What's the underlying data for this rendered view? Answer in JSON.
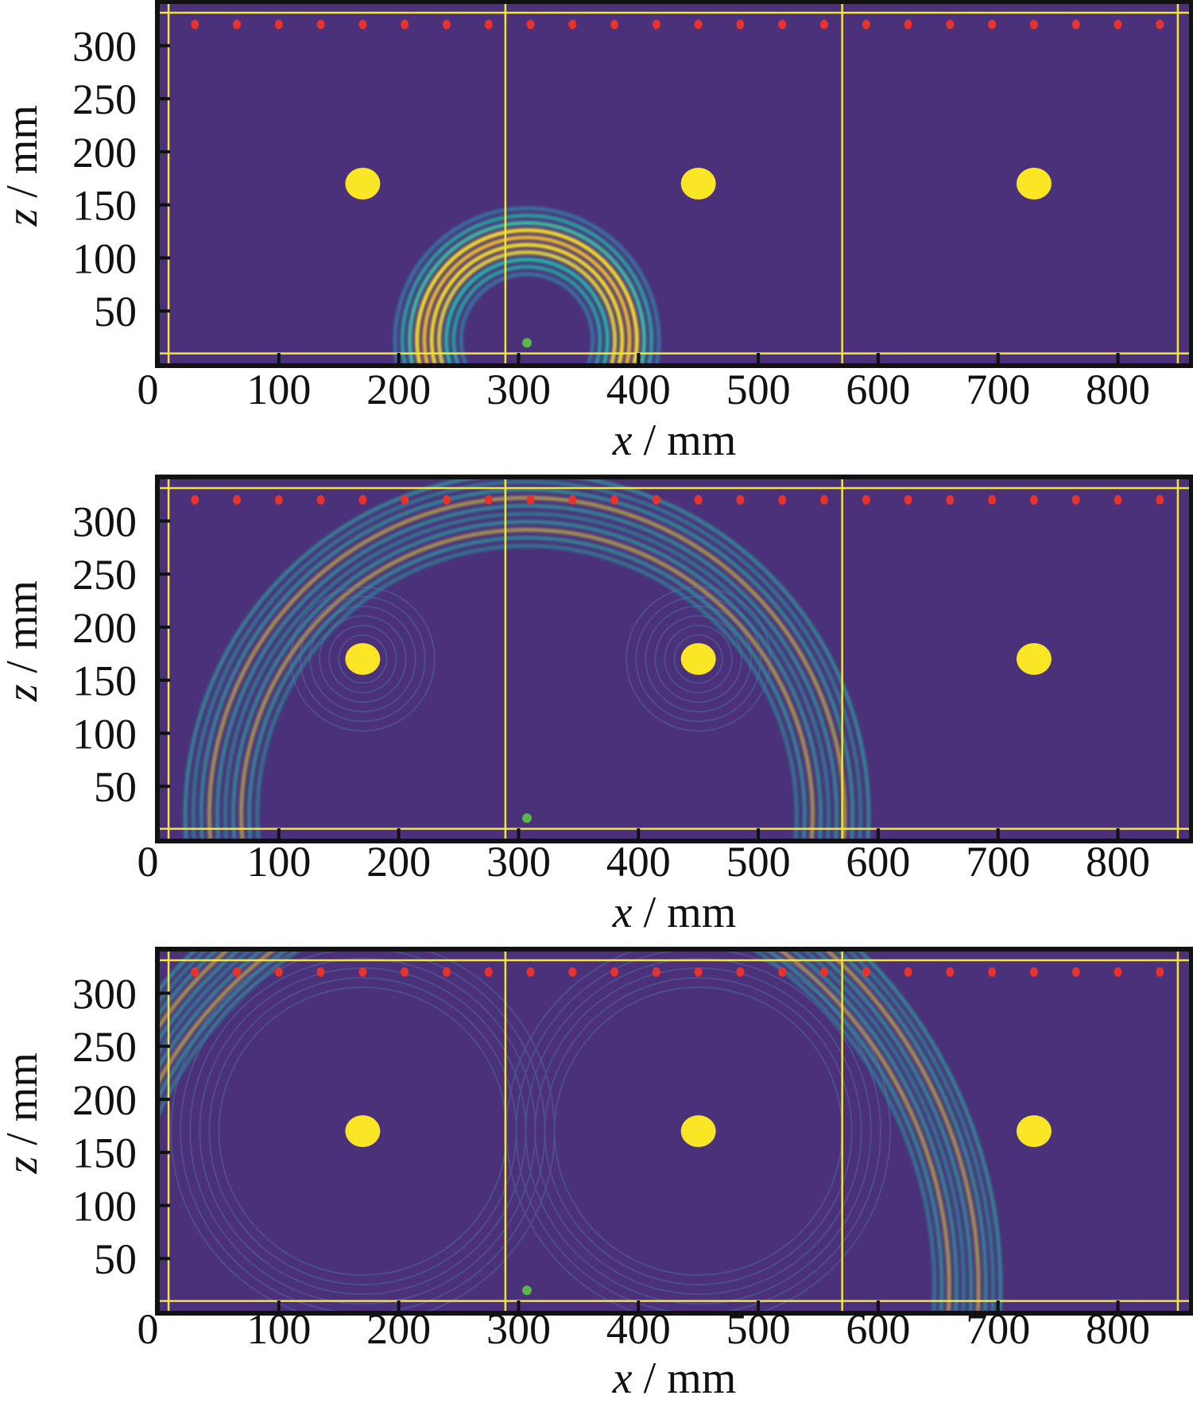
{
  "chart_data": {
    "type": "heatmap",
    "description_kind": "wavefield snapshots",
    "xlabel_var": "x",
    "xlabel_unit": " / mm",
    "ylabel_var": "z",
    "ylabel_unit": " / mm",
    "xlim": [
      0,
      860
    ],
    "ylim": [
      0,
      340
    ],
    "xticks": [
      0,
      100,
      200,
      300,
      400,
      500,
      600,
      700,
      800
    ],
    "xtick_labels": [
      "0",
      "100",
      "200",
      "300",
      "400",
      "500",
      "600",
      "700",
      "800"
    ],
    "yticks": [
      50,
      100,
      150,
      200,
      250,
      300
    ],
    "ytick_labels": [
      "50",
      "100",
      "150",
      "200",
      "250",
      "300"
    ],
    "colors": {
      "background": "#4a3179",
      "grid_lines": "#f3e43a",
      "scatterer": "#fbe625",
      "receiver": "#e8322c",
      "source": "#5bb54a",
      "frame": "#111111"
    },
    "boundary_lines": {
      "x": [
        8,
        289,
        570,
        850
      ],
      "z": [
        10,
        331
      ]
    },
    "receivers": {
      "z": 320,
      "x": [
        30,
        65,
        100,
        135,
        170,
        205,
        240,
        275,
        310,
        345,
        380,
        415,
        450,
        485,
        520,
        555,
        590,
        625,
        660,
        695,
        730,
        765,
        800,
        835
      ]
    },
    "scatterers": [
      {
        "x": 170,
        "z": 170
      },
      {
        "x": 450,
        "z": 170
      },
      {
        "x": 730,
        "z": 170
      }
    ],
    "source": {
      "x": 307,
      "z": 20
    },
    "panels": [
      {
        "name": "snapshot-1",
        "wavefront_inner_radius": 55,
        "wavefront_outer_radius": 110,
        "scattered": false
      },
      {
        "name": "snapshot-2",
        "wavefront_inner_radius": 225,
        "wavefront_outer_radius": 285,
        "scattered": true
      },
      {
        "name": "snapshot-3",
        "wavefront_inner_radius": 340,
        "wavefront_outer_radius": 395,
        "scattered": true
      }
    ]
  }
}
